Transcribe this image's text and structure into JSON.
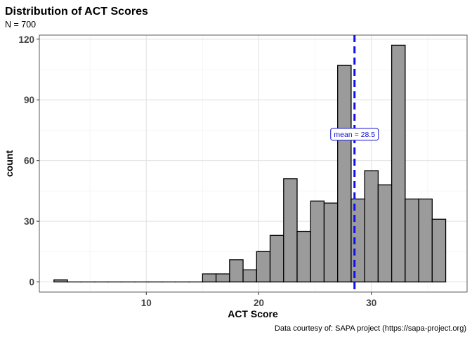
{
  "chart_data": {
    "type": "bar",
    "title": "Distribution of ACT Scores",
    "subtitle": "N = 700",
    "xlabel": "ACT Score",
    "ylabel": "count",
    "caption": "Data courtesy of: SAPA project (https://sapa-project.org)",
    "xlim": [
      0.5,
      38.5
    ],
    "ylim": [
      -5,
      122
    ],
    "x_ticks": [
      10,
      20,
      30
    ],
    "y_ticks": [
      0,
      30,
      60,
      90,
      120
    ],
    "binwidth": 1.2,
    "bins": [
      {
        "center": 2.4,
        "count": 1
      },
      {
        "center": 3.6,
        "count": 0
      },
      {
        "center": 4.8,
        "count": 0
      },
      {
        "center": 6.0,
        "count": 0
      },
      {
        "center": 7.2,
        "count": 0
      },
      {
        "center": 8.4,
        "count": 0
      },
      {
        "center": 9.6,
        "count": 0
      },
      {
        "center": 10.8,
        "count": 0
      },
      {
        "center": 12.0,
        "count": 0
      },
      {
        "center": 13.2,
        "count": 0
      },
      {
        "center": 14.4,
        "count": 0
      },
      {
        "center": 15.6,
        "count": 4
      },
      {
        "center": 16.8,
        "count": 4
      },
      {
        "center": 18.0,
        "count": 11
      },
      {
        "center": 19.2,
        "count": 6
      },
      {
        "center": 20.4,
        "count": 15
      },
      {
        "center": 21.6,
        "count": 23
      },
      {
        "center": 22.8,
        "count": 51
      },
      {
        "center": 24.0,
        "count": 25
      },
      {
        "center": 25.2,
        "count": 40
      },
      {
        "center": 26.4,
        "count": 39
      },
      {
        "center": 27.6,
        "count": 107
      },
      {
        "center": 28.8,
        "count": 41
      },
      {
        "center": 30.0,
        "count": 55
      },
      {
        "center": 31.2,
        "count": 48
      },
      {
        "center": 32.4,
        "count": 117
      },
      {
        "center": 33.6,
        "count": 41
      },
      {
        "center": 34.8,
        "count": 41
      },
      {
        "center": 36.0,
        "count": 31
      }
    ],
    "mean": 28.5,
    "mean_label": "mean = 28.5",
    "mean_label_y": 73,
    "grid": true,
    "bar_fill": "#9b9b9b",
    "bar_stroke": "#000000",
    "mean_line_color": "#1010ee"
  }
}
